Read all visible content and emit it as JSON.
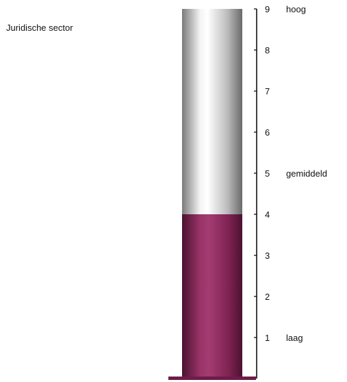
{
  "chart_data": {
    "type": "bar",
    "title": "Juridische sector",
    "categories": [
      "Juridische sector"
    ],
    "values": [
      4
    ],
    "ylim": [
      0,
      9
    ],
    "yticks": [
      1,
      2,
      3,
      4,
      5,
      6,
      7,
      8,
      9
    ],
    "level_labels": [
      {
        "value": 9,
        "label": "hoog"
      },
      {
        "value": 5,
        "label": "gemiddeld"
      },
      {
        "value": 1,
        "label": "laag"
      }
    ],
    "colors": {
      "fill": "#8e2a5e",
      "fill_highlight": "#b04578",
      "fill_shadow": "#4a1230",
      "empty": "#d8d8d8",
      "empty_highlight": "#ffffff",
      "empty_shadow": "#7a7a7a",
      "axis": "#000000"
    }
  }
}
